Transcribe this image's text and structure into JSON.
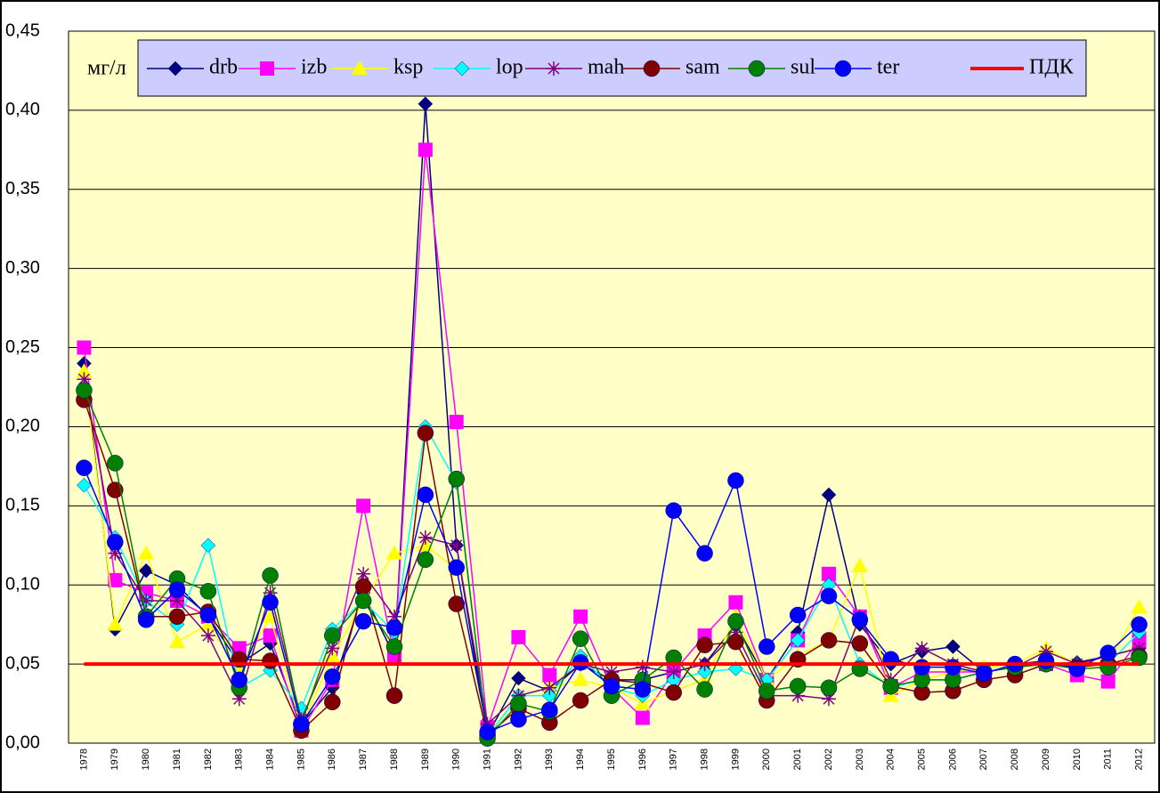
{
  "chart_data": {
    "type": "line",
    "y_label": "мг/л",
    "categories": [
      "1978",
      "1979",
      "1980",
      "1981",
      "1982",
      "1983",
      "1984",
      "1985",
      "1986",
      "1987",
      "1988",
      "1989",
      "1990",
      "1991",
      "1992",
      "1993",
      "1994",
      "1995",
      "1996",
      "1997",
      "1998",
      "1999",
      "2000",
      "2001",
      "2002",
      "2003",
      "2004",
      "2005",
      "2006",
      "2007",
      "2008",
      "2009",
      "2010",
      "2011",
      "2012"
    ],
    "ylim": [
      0,
      0.45
    ],
    "yticks": [
      {
        "value": 0,
        "label": "0,00"
      },
      {
        "value": 0.05,
        "label": "0,05"
      },
      {
        "value": 0.1,
        "label": "0,10"
      },
      {
        "value": 0.15,
        "label": "0,15"
      },
      {
        "value": 0.2,
        "label": "0,20"
      },
      {
        "value": 0.25,
        "label": "0,25"
      },
      {
        "value": 0.3,
        "label": "0,30"
      },
      {
        "value": 0.35,
        "label": "0,35"
      },
      {
        "value": 0.4,
        "label": "0,40"
      },
      {
        "value": 0.45,
        "label": "0,45"
      }
    ],
    "grid": true,
    "legend": "top",
    "series": [
      {
        "name": "drb",
        "color": "#000080",
        "marker": "diamond",
        "values": [
          0.24,
          0.072,
          0.109,
          0.1,
          0.08,
          0.05,
          0.063,
          0.012,
          0.035,
          0.095,
          0.055,
          0.404,
          0.125,
          0.005,
          0.041,
          0.033,
          0.05,
          0.04,
          0.04,
          0.045,
          0.05,
          0.075,
          0.04,
          0.07,
          0.157,
          0.075,
          0.05,
          0.058,
          0.061,
          0.045,
          0.048,
          0.05,
          0.051,
          0.055,
          0.06
        ]
      },
      {
        "name": "izb",
        "color": "#ff00ff",
        "marker": "square",
        "values": [
          0.25,
          0.103,
          0.095,
          0.09,
          0.08,
          0.06,
          0.068,
          0.008,
          0.04,
          0.15,
          0.055,
          0.375,
          0.203,
          0.01,
          0.067,
          0.043,
          0.08,
          0.035,
          0.016,
          0.045,
          0.068,
          0.089,
          0.04,
          0.065,
          0.107,
          0.08,
          0.035,
          0.045,
          0.045,
          0.045,
          0.048,
          0.05,
          0.043,
          0.039,
          0.065
        ]
      },
      {
        "name": "ksp",
        "color": "#ffff00",
        "marker": "triangle",
        "values": [
          0.235,
          0.075,
          0.12,
          0.064,
          0.075,
          0.045,
          0.08,
          0.01,
          0.055,
          0.09,
          0.12,
          0.125,
          0.11,
          0.005,
          0.03,
          0.035,
          0.04,
          0.035,
          0.025,
          0.033,
          0.04,
          0.08,
          0.04,
          0.055,
          0.065,
          0.112,
          0.03,
          0.04,
          0.045,
          0.048,
          0.05,
          0.06,
          0.05,
          0.05,
          0.086
        ]
      },
      {
        "name": "lop",
        "color": "#00ffff",
        "marker": "diamond",
        "values": [
          0.163,
          0.13,
          0.09,
          0.075,
          0.125,
          0.035,
          0.046,
          0.022,
          0.072,
          0.09,
          0.07,
          0.2,
          0.165,
          0.004,
          0.03,
          0.03,
          0.055,
          0.035,
          0.03,
          0.04,
          0.045,
          0.047,
          0.04,
          0.065,
          0.1,
          0.05,
          0.035,
          0.04,
          0.04,
          0.045,
          0.048,
          0.05,
          0.05,
          0.05,
          0.07
        ]
      },
      {
        "name": "mah",
        "color": "#800080",
        "marker": "star",
        "values": [
          0.23,
          0.12,
          0.09,
          0.09,
          0.068,
          0.028,
          0.095,
          0.015,
          0.06,
          0.107,
          0.08,
          0.13,
          0.125,
          0.012,
          0.03,
          0.035,
          0.05,
          0.045,
          0.048,
          0.045,
          0.05,
          0.07,
          0.03,
          0.03,
          0.028,
          0.08,
          0.04,
          0.06,
          0.05,
          0.045,
          0.048,
          0.058,
          0.05,
          0.055,
          0.06
        ]
      },
      {
        "name": "sam",
        "color": "#800000",
        "marker": "circle",
        "values": [
          0.217,
          0.16,
          0.08,
          0.08,
          0.083,
          0.053,
          0.052,
          0.008,
          0.026,
          0.099,
          0.03,
          0.196,
          0.088,
          0.005,
          0.022,
          0.013,
          0.027,
          0.04,
          0.038,
          0.032,
          0.062,
          0.064,
          0.027,
          0.053,
          0.065,
          0.063,
          0.036,
          0.032,
          0.033,
          0.04,
          0.043,
          0.05,
          0.048,
          0.05,
          0.055
        ]
      },
      {
        "name": "sul",
        "color": "#008000",
        "marker": "circle",
        "values": [
          0.223,
          0.177,
          0.08,
          0.104,
          0.096,
          0.035,
          0.106,
          0.012,
          0.068,
          0.09,
          0.061,
          0.116,
          0.167,
          0.003,
          0.025,
          0.02,
          0.066,
          0.03,
          0.04,
          0.054,
          0.034,
          0.077,
          0.033,
          0.036,
          0.035,
          0.047,
          0.036,
          0.04,
          0.04,
          0.045,
          0.048,
          0.05,
          0.047,
          0.048,
          0.054
        ]
      },
      {
        "name": "ter",
        "color": "#0000ff",
        "marker": "circle",
        "values": [
          0.174,
          0.127,
          0.078,
          0.097,
          0.081,
          0.04,
          0.089,
          0.012,
          0.042,
          0.077,
          0.073,
          0.157,
          0.111,
          0.007,
          0.015,
          0.021,
          0.051,
          0.036,
          0.034,
          0.147,
          0.12,
          0.166,
          0.061,
          0.081,
          0.093,
          0.078,
          0.053,
          0.048,
          0.048,
          0.044,
          0.05,
          0.052,
          0.047,
          0.057,
          0.075
        ]
      },
      {
        "name": "ПДК",
        "color": "#ff0000",
        "marker": "none",
        "values": [
          0.05,
          0.05,
          0.05,
          0.05,
          0.05,
          0.05,
          0.05,
          0.05,
          0.05,
          0.05,
          0.05,
          0.05,
          0.05,
          0.05,
          0.05,
          0.05,
          0.05,
          0.05,
          0.05,
          0.05,
          0.05,
          0.05,
          0.05,
          0.05,
          0.05,
          0.05,
          0.05,
          0.05,
          0.05,
          0.05,
          0.05,
          0.05,
          0.05,
          0.05,
          0.05
        ]
      }
    ]
  }
}
